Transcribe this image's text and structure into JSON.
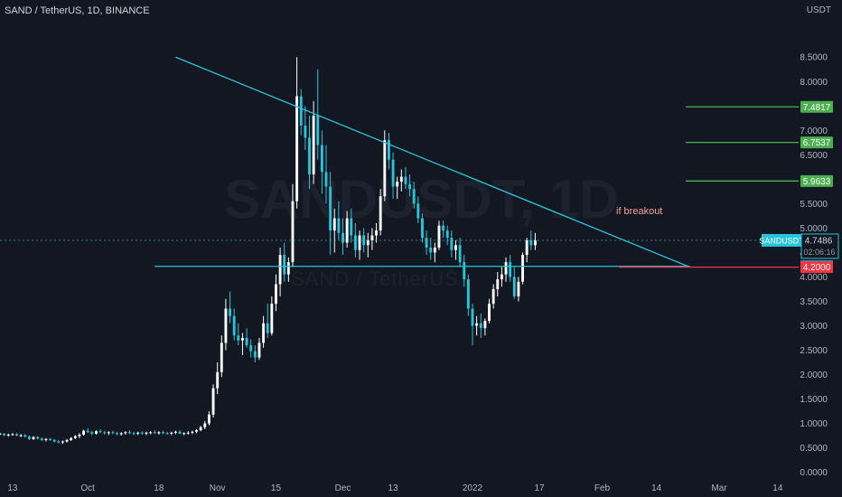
{
  "header": {
    "title": "SAND / TetherUS, 1D, BINANCE",
    "unit": "USDT"
  },
  "watermark": {
    "symbol": "SANDUSDT, 1D",
    "pair": "SAND / TetherUS"
  },
  "annotation": "if breakout",
  "colors": {
    "background": "#131722",
    "up_candle": "#ffffff",
    "down_candle": "#26c6da",
    "trendline": "#26c6da",
    "support_line": "#26c6da",
    "target_line": "#4caf50",
    "stop_line": "#f23645",
    "axis_text": "#b2b5be"
  },
  "chart_data": {
    "type": "candlestick",
    "symbol": "SANDUSDT",
    "y_axis": {
      "ticks": [
        "8.5000",
        "8.0000",
        "7.5000",
        "7.0000",
        "6.5000",
        "6.0000",
        "5.5000",
        "5.0000",
        "4.5000",
        "4.0000",
        "3.5000",
        "3.0000",
        "2.5000",
        "2.0000",
        "1.5000",
        "1.0000",
        "0.5000",
        "0.0000"
      ],
      "tick_values": [
        8.5,
        8.0,
        7.5,
        7.0,
        6.5,
        6.0,
        5.5,
        5.0,
        4.5,
        4.0,
        3.5,
        3.0,
        2.5,
        2.0,
        1.5,
        1.0,
        0.5,
        0.0
      ],
      "range": [
        -0.1,
        9.3
      ]
    },
    "x_axis": {
      "labels": [
        "13",
        "Oct",
        "18",
        "Nov",
        "15",
        "Dec",
        "13",
        "2022",
        "17",
        "Feb",
        "14",
        "Mar",
        "14"
      ],
      "label_days": [
        -18,
        0,
        17,
        31,
        45,
        61,
        73,
        92,
        108,
        123,
        136,
        151,
        165
      ],
      "range": [
        -21,
        170
      ],
      "origin_note": "day index 0 = Oct 1 2021"
    },
    "trendline": {
      "from": [
        21,
        8.5
      ],
      "to": [
        144,
        4.2
      ]
    },
    "support_line": {
      "from": [
        16,
        4.2161
      ],
      "to": [
        144,
        4.2161
      ]
    },
    "stop_line": {
      "from": [
        127,
        4.2
      ],
      "to": [
        170,
        4.2
      ]
    },
    "price_label": {
      "symbol": "SANDUSDT",
      "price": "4.7486",
      "countdown": "02:06:16",
      "value": 4.7486
    },
    "levels": [
      {
        "label": "7.4817",
        "value": 7.4817,
        "from_day": 143,
        "color": "#4caf50"
      },
      {
        "label": "6.7537",
        "value": 6.7537,
        "from_day": 143,
        "color": "#4caf50"
      },
      {
        "label": "5.9633",
        "value": 5.9633,
        "from_day": 143,
        "color": "#4caf50"
      },
      {
        "label": "4.2161",
        "value": 4.2161,
        "from_day": null,
        "color": "#26c6da"
      },
      {
        "label": "4.2000",
        "value": 4.2,
        "from_day": null,
        "color": "#f23645"
      }
    ],
    "candles_start_day": -21,
    "candles": [
      [
        0.78,
        0.81,
        0.76,
        0.79
      ],
      [
        0.79,
        0.8,
        0.74,
        0.76
      ],
      [
        0.76,
        0.79,
        0.73,
        0.77
      ],
      [
        0.77,
        0.8,
        0.75,
        0.78
      ],
      [
        0.78,
        0.8,
        0.74,
        0.75
      ],
      [
        0.75,
        0.78,
        0.72,
        0.76
      ],
      [
        0.76,
        0.78,
        0.71,
        0.73
      ],
      [
        0.73,
        0.75,
        0.66,
        0.68
      ],
      [
        0.68,
        0.74,
        0.66,
        0.72
      ],
      [
        0.72,
        0.74,
        0.67,
        0.69
      ],
      [
        0.69,
        0.71,
        0.64,
        0.66
      ],
      [
        0.66,
        0.7,
        0.63,
        0.68
      ],
      [
        0.68,
        0.7,
        0.64,
        0.66
      ],
      [
        0.66,
        0.68,
        0.61,
        0.63
      ],
      [
        0.63,
        0.66,
        0.59,
        0.61
      ],
      [
        0.61,
        0.65,
        0.58,
        0.63
      ],
      [
        0.63,
        0.68,
        0.61,
        0.66
      ],
      [
        0.66,
        0.72,
        0.64,
        0.7
      ],
      [
        0.7,
        0.76,
        0.68,
        0.74
      ],
      [
        0.74,
        0.8,
        0.7,
        0.77
      ],
      [
        0.77,
        0.87,
        0.75,
        0.85
      ],
      [
        0.85,
        0.9,
        0.8,
        0.82
      ],
      [
        0.82,
        0.85,
        0.76,
        0.79
      ],
      [
        0.79,
        0.86,
        0.77,
        0.84
      ],
      [
        0.84,
        0.88,
        0.8,
        0.82
      ],
      [
        0.82,
        0.85,
        0.77,
        0.8
      ],
      [
        0.8,
        0.84,
        0.76,
        0.82
      ],
      [
        0.82,
        0.85,
        0.78,
        0.8
      ],
      [
        0.8,
        0.83,
        0.76,
        0.78
      ],
      [
        0.78,
        0.82,
        0.75,
        0.8
      ],
      [
        0.8,
        0.84,
        0.77,
        0.82
      ],
      [
        0.82,
        0.86,
        0.78,
        0.8
      ],
      [
        0.8,
        0.83,
        0.76,
        0.79
      ],
      [
        0.79,
        0.83,
        0.76,
        0.81
      ],
      [
        0.81,
        0.84,
        0.77,
        0.79
      ],
      [
        0.79,
        0.83,
        0.76,
        0.81
      ],
      [
        0.81,
        0.84,
        0.78,
        0.82
      ],
      [
        0.82,
        0.86,
        0.78,
        0.8
      ],
      [
        0.8,
        0.84,
        0.77,
        0.82
      ],
      [
        0.82,
        0.85,
        0.78,
        0.8
      ],
      [
        0.8,
        0.83,
        0.77,
        0.79
      ],
      [
        0.79,
        0.83,
        0.76,
        0.81
      ],
      [
        0.81,
        0.85,
        0.78,
        0.83
      ],
      [
        0.83,
        0.86,
        0.78,
        0.79
      ],
      [
        0.79,
        0.82,
        0.76,
        0.8
      ],
      [
        0.8,
        0.84,
        0.77,
        0.81
      ],
      [
        0.81,
        0.85,
        0.78,
        0.83
      ],
      [
        0.83,
        0.88,
        0.8,
        0.86
      ],
      [
        0.86,
        0.95,
        0.84,
        0.92
      ],
      [
        0.92,
        1.05,
        0.88,
        1.0
      ],
      [
        1.0,
        1.25,
        0.96,
        1.18
      ],
      [
        1.18,
        1.8,
        1.12,
        1.72
      ],
      [
        1.72,
        2.25,
        1.6,
        2.05
      ],
      [
        2.05,
        2.8,
        1.95,
        2.65
      ],
      [
        2.65,
        3.55,
        2.5,
        3.35
      ],
      [
        3.35,
        3.7,
        3.05,
        3.2
      ],
      [
        3.2,
        3.35,
        2.7,
        2.8
      ],
      [
        2.8,
        3.05,
        2.6,
        2.7
      ],
      [
        2.7,
        2.85,
        2.4,
        2.75
      ],
      [
        2.75,
        2.95,
        2.55,
        2.6
      ],
      [
        2.6,
        2.72,
        2.35,
        2.48
      ],
      [
        2.48,
        2.6,
        2.25,
        2.35
      ],
      [
        2.35,
        2.75,
        2.3,
        2.65
      ],
      [
        2.65,
        3.2,
        2.55,
        3.05
      ],
      [
        3.05,
        3.45,
        2.75,
        2.85
      ],
      [
        2.85,
        3.6,
        2.8,
        3.45
      ],
      [
        3.45,
        4.05,
        3.3,
        3.85
      ],
      [
        3.85,
        4.6,
        3.6,
        4.45
      ],
      [
        4.45,
        4.7,
        3.9,
        4.05
      ],
      [
        4.05,
        4.4,
        3.9,
        4.3
      ],
      [
        4.3,
        5.9,
        4.2,
        5.55
      ],
      [
        5.55,
        8.5,
        5.4,
        7.7
      ],
      [
        7.7,
        7.85,
        6.9,
        7.1
      ],
      [
        7.1,
        7.5,
        6.6,
        6.85
      ],
      [
        6.85,
        7.3,
        5.8,
        6.1
      ],
      [
        6.1,
        7.6,
        5.9,
        7.3
      ],
      [
        7.3,
        8.25,
        6.4,
        6.7
      ],
      [
        6.7,
        7.0,
        5.7,
        6.15
      ],
      [
        6.15,
        6.7,
        5.5,
        5.85
      ],
      [
        5.85,
        6.15,
        4.45,
        4.95
      ],
      [
        4.95,
        5.4,
        4.5,
        5.2
      ],
      [
        5.2,
        5.55,
        4.75,
        4.9
      ],
      [
        4.9,
        5.2,
        4.45,
        4.7
      ],
      [
        4.7,
        5.35,
        4.6,
        5.2
      ],
      [
        5.2,
        5.4,
        4.7,
        4.85
      ],
      [
        4.85,
        5.1,
        4.4,
        4.55
      ],
      [
        4.55,
        4.95,
        4.35,
        4.85
      ],
      [
        4.85,
        5.0,
        4.5,
        4.65
      ],
      [
        4.65,
        4.9,
        4.4,
        4.75
      ],
      [
        4.75,
        5.0,
        4.55,
        4.85
      ],
      [
        4.85,
        5.1,
        4.7,
        4.95
      ],
      [
        4.95,
        5.8,
        4.85,
        5.65
      ],
      [
        5.65,
        7.0,
        5.55,
        6.8
      ],
      [
        6.8,
        6.95,
        6.2,
        6.4
      ],
      [
        6.4,
        6.55,
        5.6,
        5.85
      ],
      [
        5.85,
        6.05,
        5.6,
        5.95
      ],
      [
        5.95,
        6.2,
        5.75,
        6.05
      ],
      [
        6.05,
        6.25,
        5.8,
        5.9
      ],
      [
        5.9,
        6.1,
        5.65,
        5.8
      ],
      [
        5.8,
        5.95,
        5.4,
        5.5
      ],
      [
        5.5,
        5.65,
        5.1,
        5.2
      ],
      [
        5.2,
        5.3,
        4.7,
        4.8
      ],
      [
        4.8,
        4.95,
        4.45,
        4.6
      ],
      [
        4.6,
        4.8,
        4.35,
        4.5
      ],
      [
        4.5,
        4.7,
        4.3,
        4.6
      ],
      [
        4.6,
        5.15,
        4.55,
        5.05
      ],
      [
        5.05,
        5.15,
        4.8,
        4.95
      ],
      [
        4.95,
        5.05,
        4.65,
        4.8
      ],
      [
        4.8,
        4.95,
        4.4,
        4.55
      ],
      [
        4.55,
        4.75,
        4.35,
        4.65
      ],
      [
        4.65,
        4.8,
        4.2,
        4.3
      ],
      [
        4.3,
        4.45,
        3.8,
        3.95
      ],
      [
        3.95,
        4.05,
        3.2,
        3.35
      ],
      [
        3.35,
        3.45,
        2.6,
        3.0
      ],
      [
        3.0,
        3.2,
        2.8,
        3.05
      ],
      [
        3.05,
        3.25,
        2.75,
        2.95
      ],
      [
        2.95,
        3.15,
        2.8,
        3.1
      ],
      [
        3.1,
        3.55,
        3.05,
        3.45
      ],
      [
        3.45,
        3.85,
        3.35,
        3.75
      ],
      [
        3.75,
        4.1,
        3.6,
        3.95
      ],
      [
        3.95,
        4.2,
        3.8,
        4.05
      ],
      [
        4.05,
        4.4,
        3.9,
        4.3
      ],
      [
        4.3,
        4.45,
        3.9,
        4.0
      ],
      [
        4.0,
        4.2,
        3.55,
        3.6
      ],
      [
        3.6,
        4.0,
        3.5,
        3.9
      ],
      [
        3.9,
        4.5,
        3.85,
        4.45
      ],
      [
        4.45,
        4.8,
        4.3,
        4.75
      ],
      [
        4.75,
        4.95,
        4.55,
        4.65
      ],
      [
        4.65,
        4.9,
        4.55,
        4.75
      ]
    ]
  }
}
